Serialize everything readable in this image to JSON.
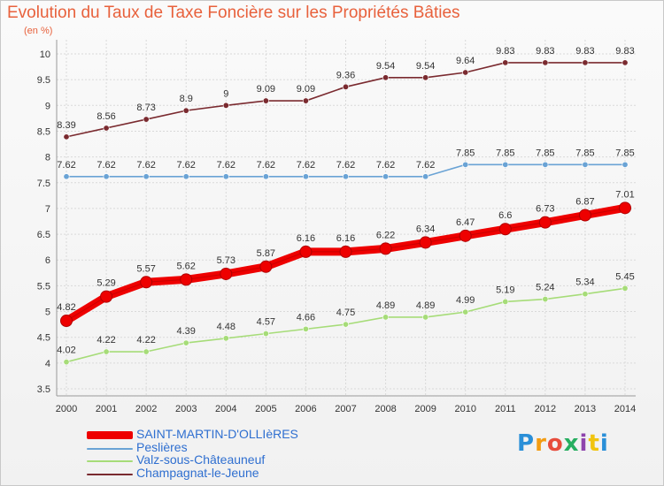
{
  "header": {
    "title": "Evolution du Taux de Taxe Foncière sur les Propriétés Bâties",
    "subtitle": "(en %)"
  },
  "logo": {
    "letters": [
      "P",
      "r",
      "o",
      "x",
      "i",
      "t",
      "i"
    ],
    "colors": [
      "#2a8fd8",
      "#f39c12",
      "#e74c3c",
      "#27ae60",
      "#8e44ad",
      "#f1c40f",
      "#2a8fd8"
    ]
  },
  "chart_data": {
    "type": "line",
    "x": [
      2000,
      2001,
      2002,
      2003,
      2004,
      2005,
      2006,
      2007,
      2008,
      2009,
      2010,
      2011,
      2012,
      2013,
      2014
    ],
    "ylim": [
      3.5,
      10
    ],
    "yticks": [
      "3.5",
      "4",
      "4.5",
      "5",
      "5.5",
      "6",
      "6.5",
      "7",
      "7.5",
      "8",
      "8.5",
      "9",
      "9.5",
      "10"
    ],
    "grid": true,
    "legend_position": "bottom-left",
    "series": [
      {
        "name": "SAINT-MARTIN-D'OLLIèRES",
        "color": "#ee0000",
        "values": [
          4.82,
          5.29,
          5.57,
          5.62,
          5.73,
          5.87,
          6.16,
          6.16,
          6.22,
          6.34,
          6.47,
          6.6,
          6.73,
          6.87,
          7.01
        ],
        "labels": [
          "4.82",
          "5.29",
          "5.57",
          "5.62",
          "5.73",
          "5.87",
          "6.16",
          "6.16",
          "6.22",
          "6.34",
          "6.47",
          "6.6",
          "6.73",
          "6.87",
          "7.01"
        ]
      },
      {
        "name": "Peslières",
        "color": "#6aa3d5",
        "values": [
          7.62,
          7.62,
          7.62,
          7.62,
          7.62,
          7.62,
          7.62,
          7.62,
          7.62,
          7.62,
          7.85,
          7.85,
          7.85,
          7.85,
          7.85
        ],
        "labels": [
          "7.62",
          "7.62",
          "7.62",
          "7.62",
          "7.62",
          "7.62",
          "7.62",
          "7.62",
          "7.62",
          "7.62",
          "7.85",
          "7.85",
          "7.85",
          "7.85",
          "7.85"
        ]
      },
      {
        "name": "Valz-sous-Châteauneuf",
        "color": "#a6dc78",
        "values": [
          4.02,
          4.22,
          4.22,
          4.39,
          4.48,
          4.57,
          4.66,
          4.75,
          4.89,
          4.89,
          4.99,
          5.19,
          5.24,
          5.34,
          5.45
        ],
        "labels": [
          "4.02",
          "4.22",
          "4.22",
          "4.39",
          "4.48",
          "4.57",
          "4.66",
          "4.75",
          "4.89",
          "4.89",
          "4.99",
          "5.19",
          "5.24",
          "5.34",
          "5.45"
        ]
      },
      {
        "name": "Champagnat-le-Jeune",
        "color": "#7a2a2f",
        "values": [
          8.39,
          8.56,
          8.73,
          8.9,
          9,
          9.09,
          9.09,
          9.36,
          9.54,
          9.54,
          9.64,
          9.83,
          9.83,
          9.83,
          9.83
        ],
        "labels": [
          "8.39",
          "8.56",
          "8.73",
          "8.9",
          "9",
          "9.09",
          "9.09",
          "9.36",
          "9.54",
          "9.54",
          "9.64",
          "9.83",
          "9.83",
          "9.83",
          "9.83"
        ]
      }
    ]
  }
}
